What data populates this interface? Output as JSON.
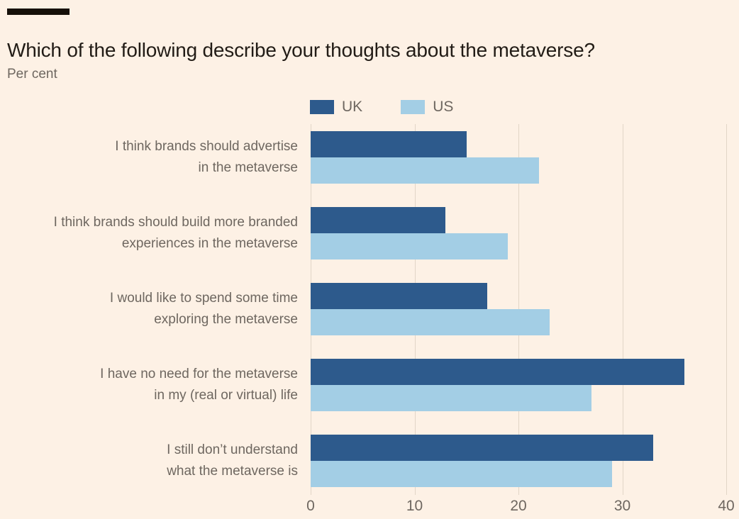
{
  "header": {
    "title": "Which of the following describe your thoughts about the metaverse?",
    "subtitle": "Per cent"
  },
  "colors": {
    "background": "#fdf1e5",
    "uk_bar": "#2d5a8c",
    "us_bar": "#a3cee5",
    "grid_line": "#e2d5c7",
    "title_text": "#221c16",
    "muted_text": "#6e6760",
    "kicker_rule": "#161009"
  },
  "chart_data": {
    "type": "bar",
    "orientation": "horizontal",
    "title": "Which of the following describe your thoughts about the metaverse?",
    "subtitle": "Per cent",
    "categories": [
      [
        "I think brands should advertise",
        "in the metaverse"
      ],
      [
        "I think brands should build more branded",
        "experiences in the metaverse"
      ],
      [
        "I would like to spend some time",
        "exploring the metaverse"
      ],
      [
        "I have no need for the metaverse",
        "in my (real or virtual) life"
      ],
      [
        "I still don’t understand",
        "what the metaverse is"
      ]
    ],
    "series": [
      {
        "name": "UK",
        "color": "#2d5a8c",
        "values": [
          15,
          13,
          17,
          36,
          33
        ]
      },
      {
        "name": "US",
        "color": "#a3cee5",
        "values": [
          22,
          19,
          23,
          27,
          29
        ]
      }
    ],
    "xlabel": "",
    "ylabel": "",
    "xlim": [
      0,
      40
    ],
    "xticks": [
      0,
      10,
      20,
      30,
      40
    ],
    "grid": true,
    "legend_position": "top"
  }
}
